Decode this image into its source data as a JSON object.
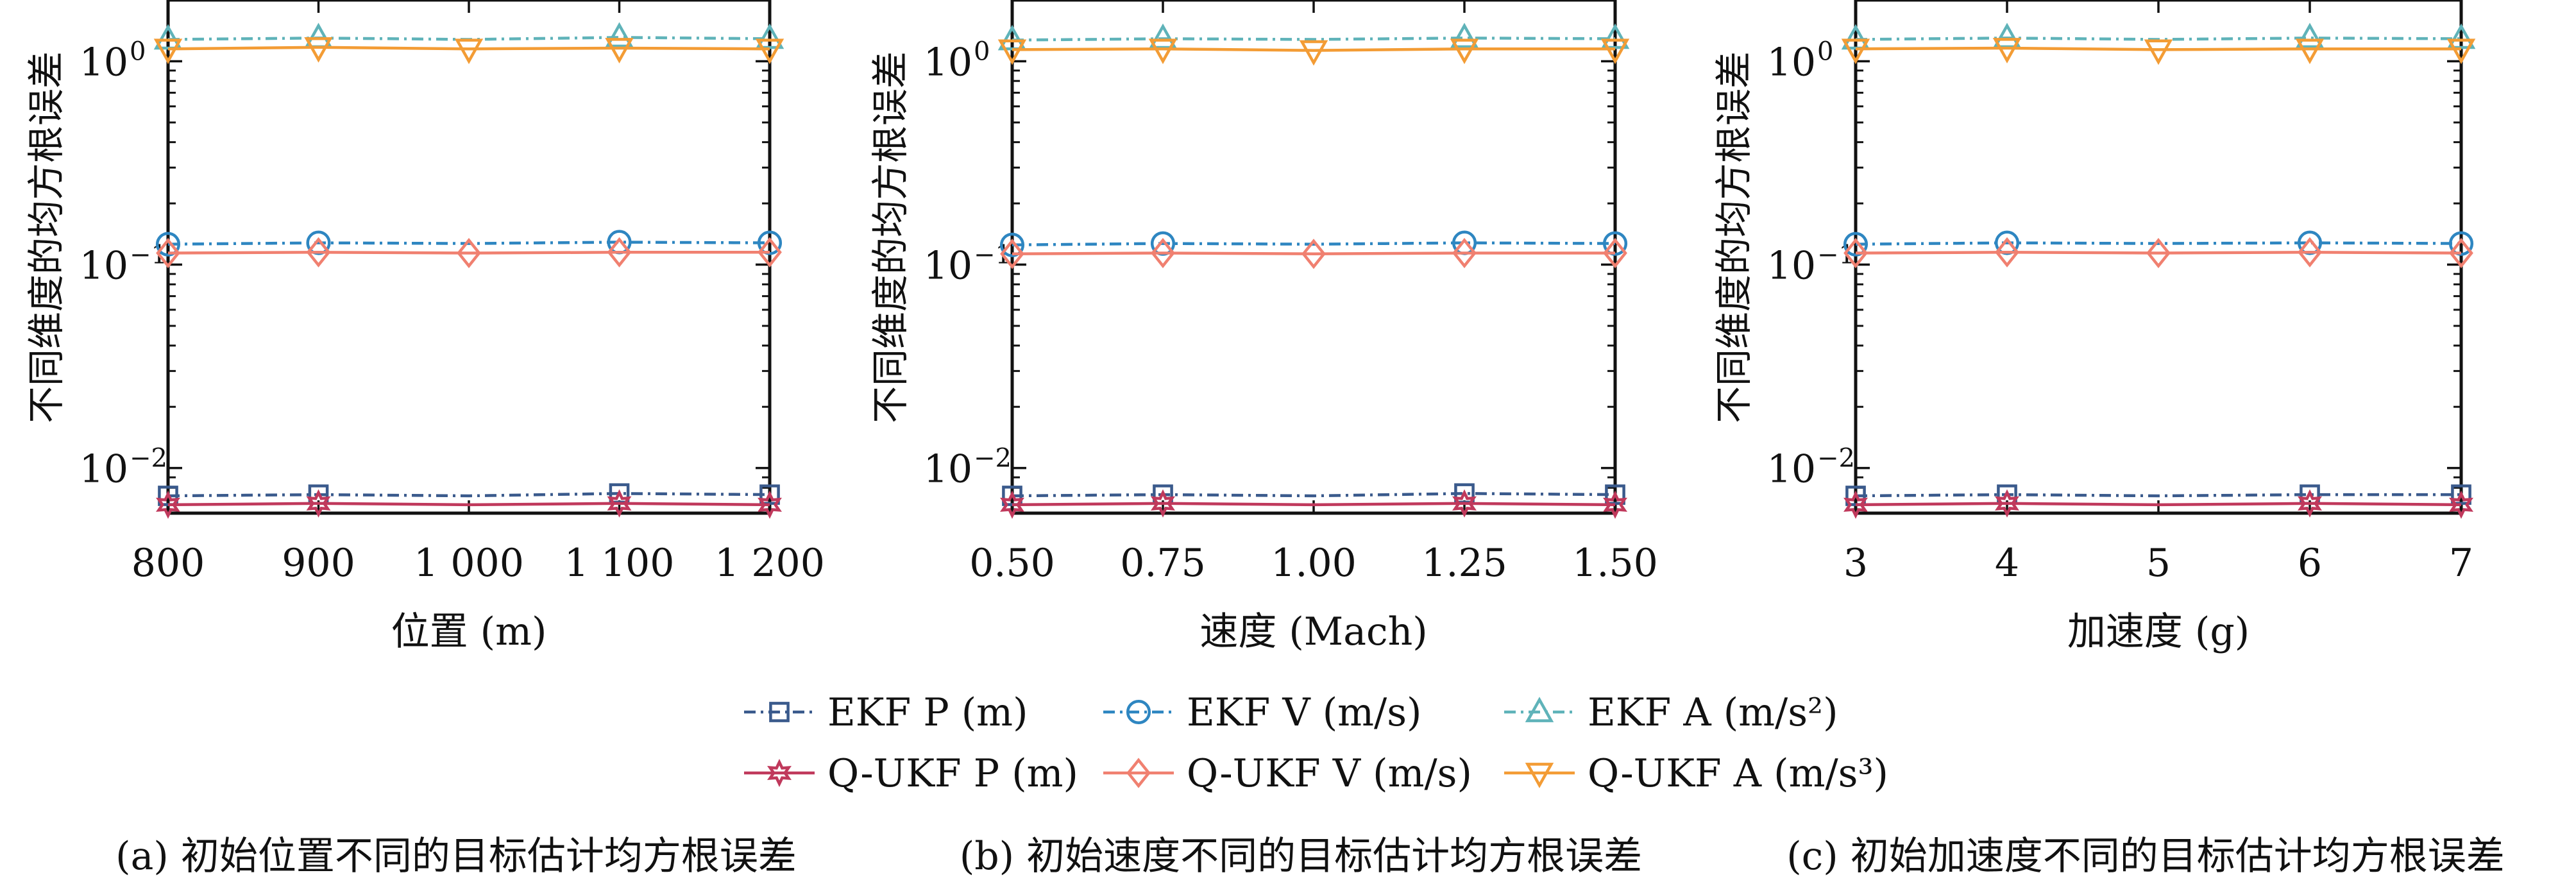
{
  "colors": {
    "ekf_p": "#3a5a8c",
    "ekf_v": "#2e86c1",
    "ekf_a": "#5fb3b9",
    "qukf_p": "#c0395c",
    "qukf_v": "#f08070",
    "qukf_a": "#f39c35"
  },
  "legend": [
    {
      "label": "EKF P (m)",
      "series": "ekf_p",
      "marker": "square",
      "dash": "dashdot"
    },
    {
      "label": "EKF V (m/s)",
      "series": "ekf_v",
      "marker": "circle",
      "dash": "dashdot"
    },
    {
      "label": "EKF A (m/s²)",
      "series": "ekf_a",
      "marker": "triangle-up",
      "dash": "dashdot"
    },
    {
      "label": "Q-UKF P (m)",
      "series": "qukf_p",
      "marker": "star",
      "dash": "solid"
    },
    {
      "label": "Q-UKF V (m/s)",
      "series": "qukf_v",
      "marker": "diamond",
      "dash": "solid"
    },
    {
      "label": "Q-UKF A (m/s³)",
      "series": "qukf_a",
      "marker": "triangle-down",
      "dash": "solid"
    }
  ],
  "chart_data": [
    {
      "type": "line",
      "caption": "(a) 初始位置不同的目标估计均方根误差",
      "xlabel": "位置 (m)",
      "ylabel": "不同维度的均方根误差",
      "yscale": "log",
      "ylim": [
        0.006,
        2.0
      ],
      "xlim": [
        800,
        1200
      ],
      "xticks": [
        800,
        900,
        1000,
        1100,
        1200
      ],
      "xtick_labels": [
        "800",
        "900",
        "1 000",
        "1 100",
        "1 200"
      ],
      "yticks": [
        {
          "value": 1,
          "label": "10",
          "exp": "0"
        },
        {
          "value": 0.1,
          "label": "10",
          "exp": "−1"
        },
        {
          "value": 0.01,
          "label": "10",
          "exp": "−2"
        }
      ],
      "x": [
        800,
        900,
        1000,
        1100,
        1200
      ],
      "series": [
        {
          "key": "ekf_a",
          "name": "EKF A (m/s²)",
          "values": [
            1.28,
            1.3,
            1.28,
            1.31,
            1.29
          ]
        },
        {
          "key": "qukf_a",
          "name": "Q-UKF A (m/s³)",
          "values": [
            1.15,
            1.17,
            1.15,
            1.16,
            1.15
          ]
        },
        {
          "key": "ekf_v",
          "name": "EKF V (m/s)",
          "values": [
            0.126,
            0.128,
            0.127,
            0.129,
            0.128
          ]
        },
        {
          "key": "qukf_v",
          "name": "Q-UKF V (m/s)",
          "values": [
            0.114,
            0.115,
            0.114,
            0.115,
            0.115
          ]
        },
        {
          "key": "ekf_p",
          "name": "EKF P (m)",
          "values": [
            0.0073,
            0.0074,
            0.0073,
            0.0075,
            0.0074
          ]
        },
        {
          "key": "qukf_p",
          "name": "Q-UKF P (m)",
          "values": [
            0.0066,
            0.0067,
            0.0066,
            0.0067,
            0.0066
          ]
        }
      ]
    },
    {
      "type": "line",
      "caption": "(b) 初始速度不同的目标估计均方根误差",
      "xlabel": "速度 (Mach)",
      "ylabel": "不同维度的均方根误差",
      "yscale": "log",
      "ylim": [
        0.006,
        2.0
      ],
      "xlim": [
        0.5,
        1.5
      ],
      "xticks": [
        0.5,
        0.75,
        1.0,
        1.25,
        1.5
      ],
      "xtick_labels": [
        "0.50",
        "0.75",
        "1.00",
        "1.25",
        "1.50"
      ],
      "yticks": [
        {
          "value": 1,
          "label": "10",
          "exp": "0"
        },
        {
          "value": 0.1,
          "label": "10",
          "exp": "−1"
        },
        {
          "value": 0.01,
          "label": "10",
          "exp": "−2"
        }
      ],
      "x": [
        0.5,
        0.75,
        1.0,
        1.25,
        1.5
      ],
      "series": [
        {
          "key": "ekf_a",
          "name": "EKF A (m/s²)",
          "values": [
            1.27,
            1.29,
            1.28,
            1.3,
            1.29
          ]
        },
        {
          "key": "qukf_a",
          "name": "Q-UKF A (m/s³)",
          "values": [
            1.14,
            1.15,
            1.13,
            1.15,
            1.15
          ]
        },
        {
          "key": "ekf_v",
          "name": "EKF V (m/s)",
          "values": [
            0.125,
            0.127,
            0.126,
            0.128,
            0.127
          ]
        },
        {
          "key": "qukf_v",
          "name": "Q-UKF V (m/s)",
          "values": [
            0.113,
            0.114,
            0.113,
            0.114,
            0.114
          ]
        },
        {
          "key": "ekf_p",
          "name": "EKF P (m)",
          "values": [
            0.0073,
            0.0074,
            0.0073,
            0.0075,
            0.0074
          ]
        },
        {
          "key": "qukf_p",
          "name": "Q-UKF P (m)",
          "values": [
            0.0066,
            0.0067,
            0.0066,
            0.0067,
            0.0066
          ]
        }
      ]
    },
    {
      "type": "line",
      "caption": "(c) 初始加速度不同的目标估计均方根误差",
      "xlabel": "加速度 (g)",
      "ylabel": "不同维度的均方根误差",
      "yscale": "log",
      "ylim": [
        0.006,
        2.0
      ],
      "xlim": [
        3,
        7
      ],
      "xticks": [
        3,
        4,
        5,
        6,
        7
      ],
      "xtick_labels": [
        "3",
        "4",
        "5",
        "6",
        "7"
      ],
      "yticks": [
        {
          "value": 1,
          "label": "10",
          "exp": "0"
        },
        {
          "value": 0.1,
          "label": "10",
          "exp": "−1"
        },
        {
          "value": 0.01,
          "label": "10",
          "exp": "−2"
        }
      ],
      "x": [
        3,
        4,
        5,
        6,
        7
      ],
      "series": [
        {
          "key": "ekf_a",
          "name": "EKF A (m/s²)",
          "values": [
            1.28,
            1.3,
            1.28,
            1.3,
            1.29
          ]
        },
        {
          "key": "qukf_a",
          "name": "Q-UKF A (m/s³)",
          "values": [
            1.15,
            1.16,
            1.14,
            1.15,
            1.15
          ]
        },
        {
          "key": "ekf_v",
          "name": "EKF V (m/s)",
          "values": [
            0.126,
            0.128,
            0.127,
            0.128,
            0.127
          ]
        },
        {
          "key": "qukf_v",
          "name": "Q-UKF V (m/s)",
          "values": [
            0.114,
            0.115,
            0.114,
            0.115,
            0.114
          ]
        },
        {
          "key": "ekf_p",
          "name": "EKF P (m)",
          "values": [
            0.0073,
            0.0074,
            0.0073,
            0.0074,
            0.0074
          ]
        },
        {
          "key": "qukf_p",
          "name": "Q-UKF P (m)",
          "values": [
            0.0066,
            0.0067,
            0.0066,
            0.0067,
            0.0066
          ]
        }
      ]
    }
  ]
}
